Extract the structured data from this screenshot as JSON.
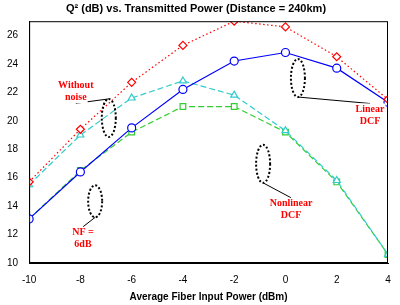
{
  "chart_data": {
    "type": "line",
    "title": "Q² (dB) vs. Transmitted Power (Distance = 240km)",
    "x_label": "Average Fiber Input Power (dBm)",
    "x": [
      -10,
      -8,
      -6,
      -4,
      -2,
      0,
      2,
      4
    ],
    "series": [
      {
        "color": "#ff0000",
        "marker": "diamond",
        "line_style": "dotted",
        "values": [
          15.7,
          19.4,
          22.7,
          25.3,
          27.0,
          26.6,
          24.5,
          21.5
        ]
      },
      {
        "color": "#0000ff",
        "marker": "circle",
        "line_style": "solid",
        "values": [
          13.1,
          16.4,
          19.5,
          22.2,
          24.2,
          24.8,
          23.7,
          21.3
        ]
      },
      {
        "color": "#33cccc",
        "marker": "triangle",
        "line_style": "dashed",
        "values": [
          15.5,
          19.0,
          21.6,
          22.8,
          21.8,
          19.3,
          15.8,
          10.6
        ]
      },
      {
        "color": "#33cc33",
        "marker": "square",
        "line_style": "dashed",
        "values": [
          13.1,
          16.5,
          19.2,
          21.0,
          21.0,
          19.2,
          15.7,
          10.6
        ]
      }
    ],
    "xlim": [
      -10,
      4
    ],
    "xticks": [
      -10,
      -8,
      -6,
      -4,
      -2,
      0,
      2,
      4
    ],
    "ylim": [
      10,
      27
    ],
    "yticks": [
      10,
      12,
      14,
      16,
      18,
      20,
      22,
      24,
      26
    ],
    "grid": false,
    "annotations": [
      {
        "text": "Without\nnoise"
      },
      {
        "text": "NF =\n6dB"
      },
      {
        "text": "Linear\nDCF"
      },
      {
        "text": "Nonlinear\nDCF"
      }
    ]
  }
}
